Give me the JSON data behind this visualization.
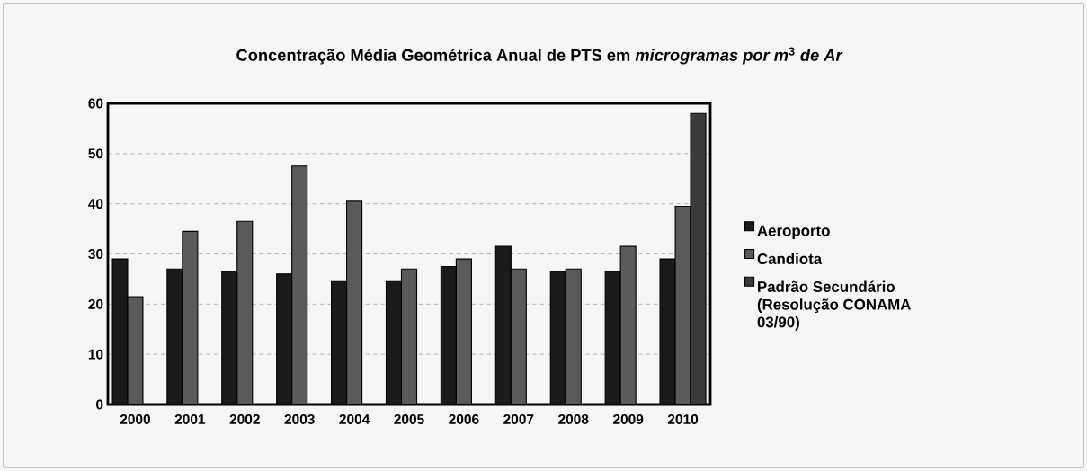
{
  "chart_data": {
    "type": "bar",
    "title": "Concentração Média Geométrica Anual de PTS em *microgramas por m*$^{3}$ *de Ar*",
    "categories": [
      "2000",
      "2001",
      "2002",
      "2003",
      "2004",
      "2005",
      "2006",
      "2007",
      "2008",
      "2009",
      "2010"
    ],
    "series": [
      {
        "name": "Aeroporto",
        "color": "#1a1a1a",
        "values": [
          29,
          27,
          26.5,
          26,
          24.5,
          24.5,
          27.5,
          31.5,
          26.5,
          26.5,
          29
        ]
      },
      {
        "name": "Candiota",
        "color": "#5a5a5a",
        "values": [
          21.5,
          34.5,
          36.5,
          47.5,
          40.5,
          27,
          29,
          27,
          27,
          31.5,
          39.5
        ]
      },
      {
        "name": "Padrão Secundário (Resolução CONAMA 03/90)",
        "color": "#3a3a3a",
        "values": [
          null,
          null,
          null,
          null,
          null,
          null,
          null,
          null,
          null,
          null,
          58
        ]
      }
    ],
    "ylim": [
      0,
      60
    ],
    "yticks": [
      0,
      10,
      20,
      30,
      40,
      50,
      60
    ],
    "grid": "y",
    "legend": "right"
  }
}
